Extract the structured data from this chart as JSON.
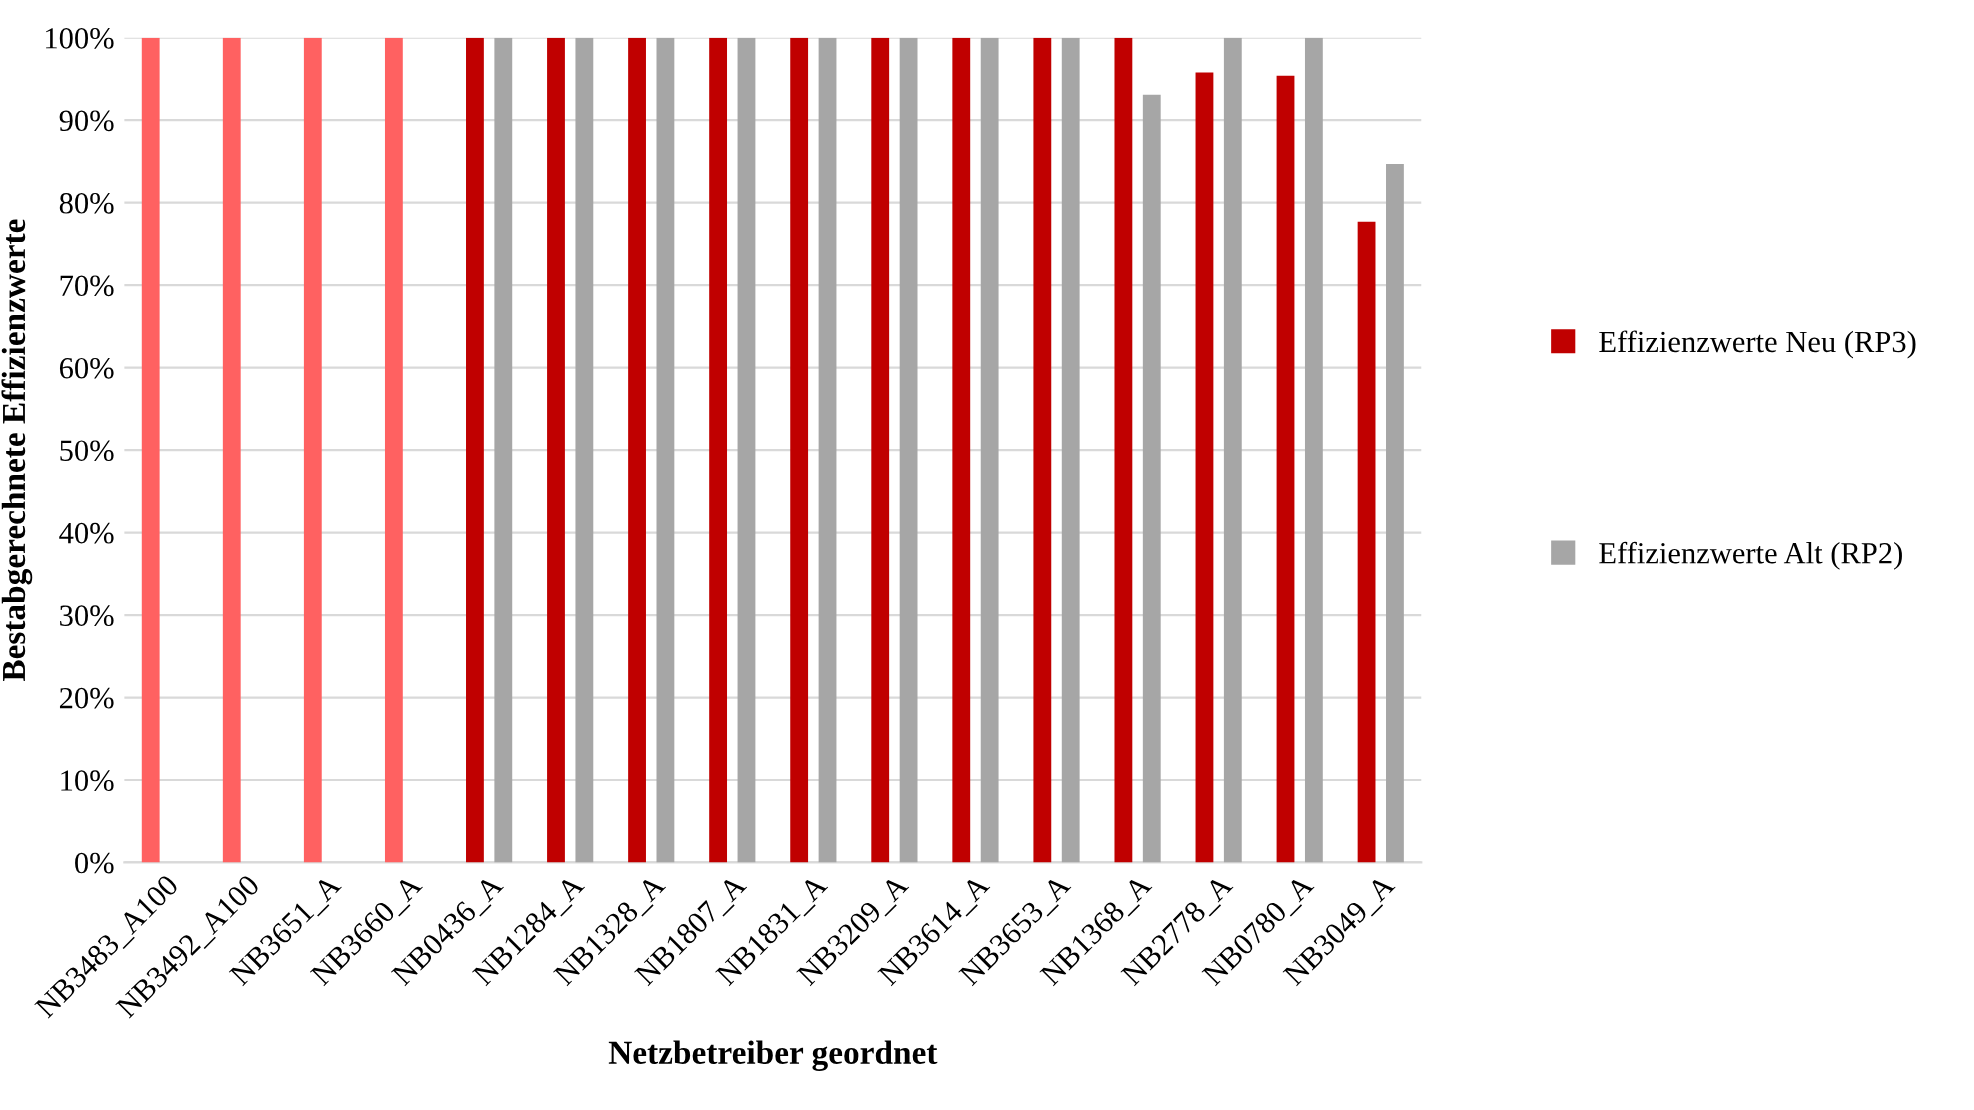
{
  "chart_data": {
    "type": "bar",
    "xlabel": "Netzbetreiber geordnet",
    "ylabel": "Bestabgerechnete Effizienzwerte",
    "categories": [
      "NB3483_A100",
      "NB3492_A100",
      "NB3651_A",
      "NB3660_A",
      "NB0436_A",
      "NB1284_A",
      "NB1328_A",
      "NB1807_A",
      "NB1831_A",
      "NB3209_A",
      "NB3614_A",
      "NB3653_A",
      "NB1368_A",
      "NB2778_A",
      "NB0780_A",
      "NB3049_A"
    ],
    "series": [
      {
        "name": "Effizienzwerte Neu (RP3)",
        "color": "#c00000",
        "colors": [
          "#ff6161",
          "#ff6161",
          "#ff6161",
          "#ff6161",
          "#c00000",
          "#c00000",
          "#c00000",
          "#c00000",
          "#c00000",
          "#c00000",
          "#c00000",
          "#c00000",
          "#c00000",
          "#c00000",
          "#c00000",
          "#c00000"
        ],
        "values": [
          100,
          100,
          100,
          100,
          100,
          100,
          100,
          100,
          100,
          100,
          100,
          100,
          100,
          95.8,
          95.4,
          77.7
        ]
      },
      {
        "name": "Effizienzwerte Alt (RP2)",
        "color": "#a6a6a6",
        "values": [
          null,
          null,
          null,
          null,
          100,
          100,
          100,
          100,
          100,
          100,
          100,
          100,
          93.1,
          100,
          100,
          84.7
        ]
      }
    ],
    "ylim": [
      0,
      100
    ],
    "yticks": [
      {
        "value": 0,
        "label": "0%"
      },
      {
        "value": 10,
        "label": "10%"
      },
      {
        "value": 20,
        "label": "20%"
      },
      {
        "value": 30,
        "label": "30%"
      },
      {
        "value": 40,
        "label": "40%"
      },
      {
        "value": 50,
        "label": "50%"
      },
      {
        "value": 60,
        "label": "60%"
      },
      {
        "value": 70,
        "label": "70%"
      },
      {
        "value": 80,
        "label": "80%"
      },
      {
        "value": 90,
        "label": "90%"
      },
      {
        "value": 100,
        "label": "100%"
      }
    ],
    "grid": "y",
    "legend": "right"
  }
}
